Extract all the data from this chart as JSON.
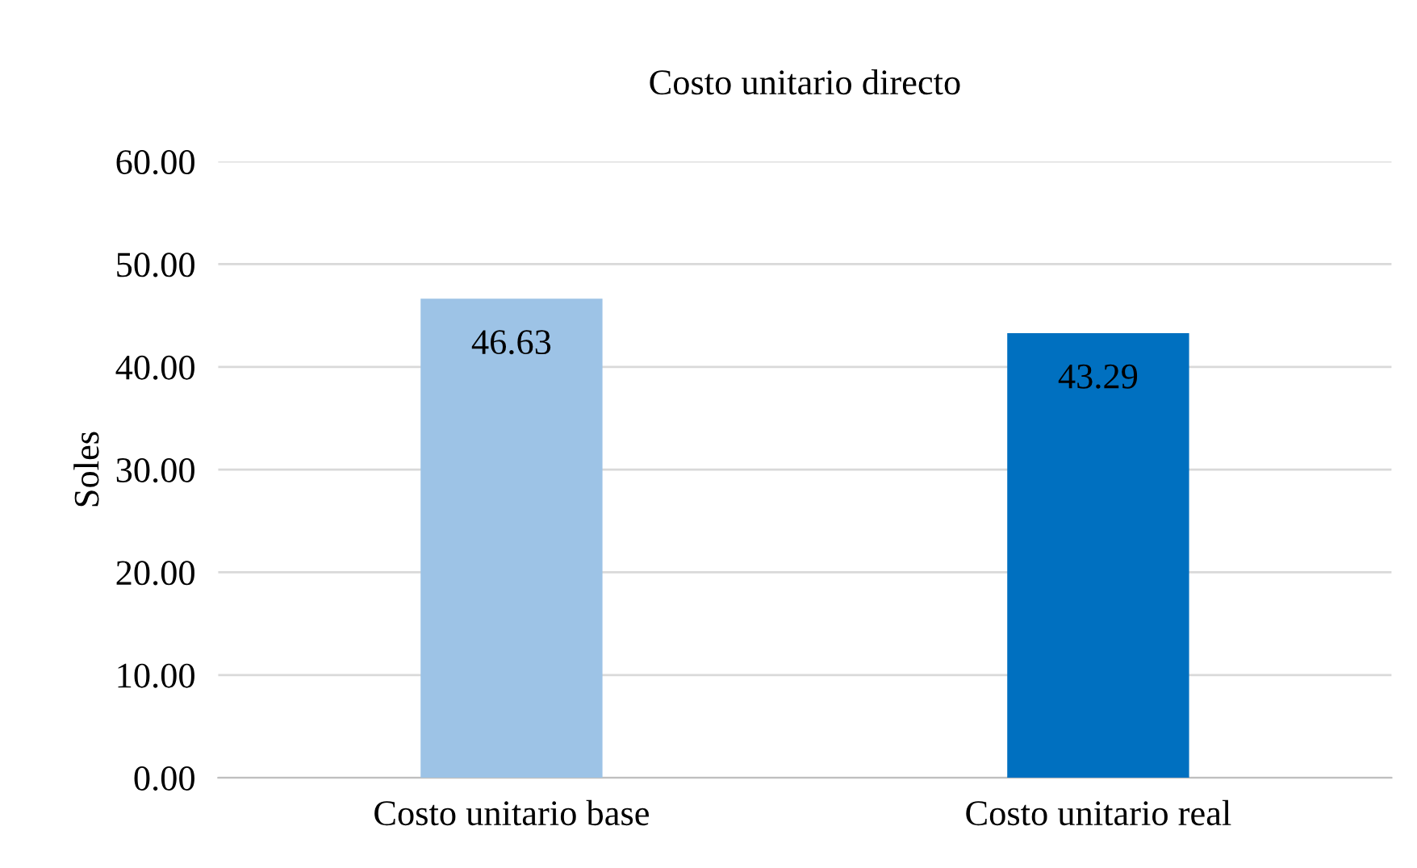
{
  "chart_data": {
    "type": "bar",
    "title": "Costo unitario directo",
    "ylabel": "Soles",
    "categories": [
      "Costo unitario base",
      "Costo unitario real"
    ],
    "values": [
      46.63,
      43.29
    ],
    "colors": [
      "#9dc3e6",
      "#0070c0"
    ],
    "ylim": [
      0,
      60
    ],
    "yticks": [
      {
        "value": 0,
        "label": "0.00"
      },
      {
        "value": 10,
        "label": "10.00"
      },
      {
        "value": 20,
        "label": "20.00"
      },
      {
        "value": 30,
        "label": "30.00"
      },
      {
        "value": 40,
        "label": "40.00"
      },
      {
        "value": 50,
        "label": "50.00"
      },
      {
        "value": 60,
        "label": "60.00"
      }
    ],
    "grid": "y",
    "data_labels": true
  }
}
